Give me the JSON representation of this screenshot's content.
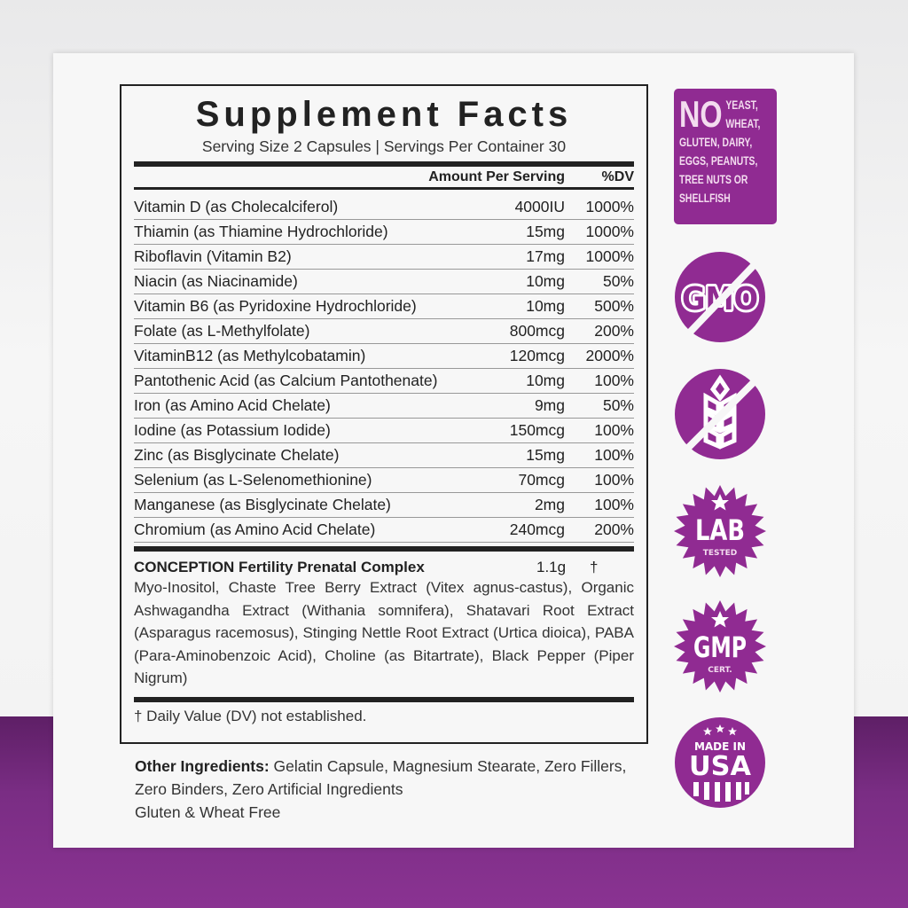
{
  "panel": {
    "title": "Supplement Facts",
    "serving": "Serving Size 2 Capsules | Servings Per Container 30",
    "header_amount": "Amount Per Serving",
    "header_dv": "%DV",
    "rows": [
      {
        "name": "Vitamin D (as Cholecalciferol)",
        "amount": "4000IU",
        "dv": "1000%"
      },
      {
        "name": "Thiamin (as Thiamine Hydrochloride)",
        "amount": "15mg",
        "dv": "1000%"
      },
      {
        "name": "Riboflavin (Vitamin B2)",
        "amount": "17mg",
        "dv": "1000%"
      },
      {
        "name": "Niacin (as Niacinamide)",
        "amount": "10mg",
        "dv": "50%"
      },
      {
        "name": "Vitamin B6 (as Pyridoxine Hydrochloride)",
        "amount": "10mg",
        "dv": "500%"
      },
      {
        "name": "Folate (as L-Methylfolate)",
        "amount": "800mcg",
        "dv": "200%"
      },
      {
        "name": "VitaminB12 (as Methylcobatamin)",
        "amount": "120mcg",
        "dv": "2000%"
      },
      {
        "name": "Pantothenic Acid (as Calcium Pantothenate)",
        "amount": "10mg",
        "dv": "100%"
      },
      {
        "name": "Iron (as Amino Acid Chelate)",
        "amount": "9mg",
        "dv": "50%"
      },
      {
        "name": "Iodine (as Potassium Iodide)",
        "amount": "150mcg",
        "dv": "100%"
      },
      {
        "name": "Zinc (as Bisglycinate Chelate)",
        "amount": "15mg",
        "dv": "100%"
      },
      {
        "name": "Selenium (as L-Selenomethionine)",
        "amount": "70mcg",
        "dv": "100%"
      },
      {
        "name": "Manganese (as Bisglycinate Chelate)",
        "amount": "2mg",
        "dv": "100%"
      },
      {
        "name": "Chromium (as Amino Acid Chelate)",
        "amount": "240mcg",
        "dv": "200%"
      }
    ],
    "complex": {
      "name": "CONCEPTION Fertility Prenatal Complex",
      "amount": "1.1g",
      "dv": "†",
      "desc": "Myo-Inositol, Chaste Tree Berry Extract (Vitex agnus-castus), Organic Ashwagandha Extract (Withania somnifera), Shatavari Root Extract (Asparagus racemosus), Stinging Nettle Root Extract (Urtica dioica), PABA (Para-Aminobenzoic Acid), Choline (as Bitartrate), Black Pepper (Piper Nigrum)"
    },
    "footnote": "† Daily Value (DV) not established."
  },
  "other": {
    "label": "Other Ingredients:",
    "text": " Gelatin Capsule, Magnesium Stearate, Zero Fillers, Zero Binders, Zero Artificial Ingredients",
    "line3": "Gluten & Wheat Free"
  },
  "badges": {
    "no_big": "NO",
    "no_text": "YEAST, WHEAT, GLUTEN, DAIRY, EGGS, PEANUTS, TREE NUTS OR SHELLFISH",
    "gmo": "GMO",
    "lab": "LAB",
    "lab_sub": "TESTED",
    "gmp": "GMP",
    "gmp_sub": "CERT.",
    "usa_top": "MADE IN",
    "usa": "USA"
  },
  "colors": {
    "brand_purple": "#902b92"
  }
}
